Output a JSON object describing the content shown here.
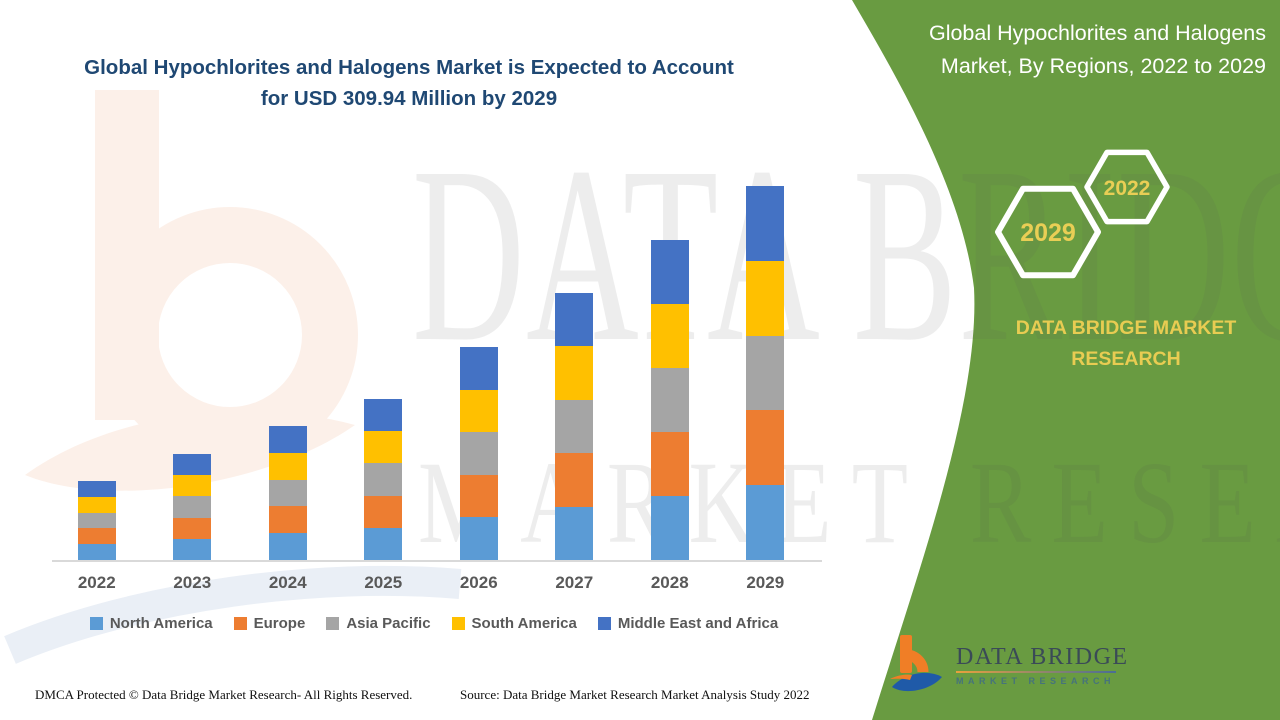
{
  "main": {
    "title": "Global Hypochlorites and Halogens Market is Expected to Account for USD 309.94 Million by 2029"
  },
  "panel": {
    "title": "Global Hypochlorites and Halogens Market, By Regions, 2022 to 2029",
    "hexagon_back_label": "2022",
    "hexagon_front_label": "2029",
    "brand_text": "DATA BRIDGE MARKET RESEARCH",
    "background_color": "#699B41",
    "accent_yellow": "#E8CC52"
  },
  "logo": {
    "name": "DATA BRIDGE",
    "sub": "MARKET RESEARCH"
  },
  "watermark": {
    "line1": "DATA BRIDGE",
    "line2": "MARKET RESEARCH"
  },
  "footer": {
    "left": "DMCA Protected © Data Bridge Market Research- All Rights Reserved.",
    "source": "Source: Data Bridge Market Research Market Analysis Study 2022"
  },
  "chart_data": {
    "type": "bar",
    "stacked": true,
    "title": "Global Hypochlorites and Halogens Market, By Regions, 2022 to 2029",
    "unit": "USD Million",
    "categories": [
      "2022",
      "2023",
      "2024",
      "2025",
      "2026",
      "2027",
      "2028",
      "2029"
    ],
    "series": [
      {
        "name": "North America",
        "color": "#5B9BD5",
        "values": [
          13.1,
          17.6,
          22.2,
          26.7,
          35.3,
          44.3,
          53.0,
          61.99
        ]
      },
      {
        "name": "Europe",
        "color": "#ED7D31",
        "values": [
          13.1,
          17.6,
          22.2,
          26.7,
          35.3,
          44.3,
          53.0,
          61.99
        ]
      },
      {
        "name": "Asia Pacific",
        "color": "#A5A5A5",
        "values": [
          13.1,
          17.6,
          22.2,
          26.7,
          35.3,
          44.3,
          53.0,
          61.99
        ]
      },
      {
        "name": "South America",
        "color": "#FFC000",
        "values": [
          13.1,
          17.6,
          22.2,
          26.7,
          35.3,
          44.3,
          53.0,
          61.99
        ]
      },
      {
        "name": "Middle East and Africa",
        "color": "#4472C4",
        "values": [
          13.1,
          17.6,
          22.2,
          26.7,
          35.3,
          44.3,
          53.0,
          61.99
        ]
      }
    ],
    "totals": [
      65.5,
      88.0,
      111.0,
      133.5,
      176.5,
      221.5,
      265.0,
      309.94
    ],
    "stated_value_2029": 309.94,
    "ylim": [
      0,
      310
    ],
    "grid": false,
    "y_axis_visible": false,
    "legend_position": "bottom"
  }
}
